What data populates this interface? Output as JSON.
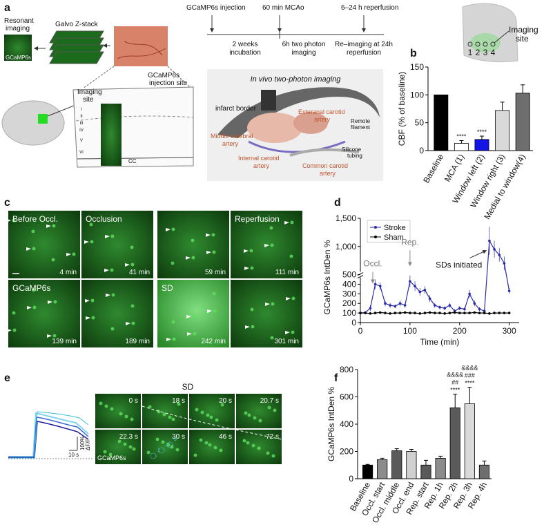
{
  "panel_labels": [
    "a",
    "b",
    "c",
    "d",
    "e",
    "f"
  ],
  "panel_a": {
    "resonant_imaging": [
      "Resonant",
      "imaging"
    ],
    "image_label": "GCaMP6s",
    "galvo": "Galvo Z-stack",
    "injection_site": [
      "GCaMP6s",
      "injection site"
    ],
    "imaging_site": [
      "Imaging",
      "site"
    ],
    "layers": [
      "I",
      "II",
      "III",
      "IV",
      "V",
      "VI"
    ],
    "cc": "CC",
    "timeline": {
      "events": [
        "GCaMP6s injection",
        "60 min MCAo",
        "6–24 h reperfusion"
      ],
      "periods": [
        [
          "2 weeks",
          "incubation"
        ],
        [
          "6h two photon",
          "imaging"
        ],
        [
          "Re–imaging at 24h",
          "reperfusion"
        ]
      ]
    },
    "illustration": {
      "title": "In vivo two-photon imaging",
      "infarct": "infarct border",
      "external": [
        "Exteranal carotid",
        "artery"
      ],
      "filament": [
        "Remote",
        "filament"
      ],
      "middle": [
        "Middle cerebral",
        "artery"
      ],
      "internal": [
        "Internal carotid",
        "artery"
      ],
      "tubing": [
        "Silicone",
        "tubing"
      ],
      "common": [
        "Common carotid",
        "artery"
      ]
    }
  },
  "panel_b_inset": {
    "positions": [
      "1",
      "2",
      "3",
      "4"
    ],
    "label": [
      "Imaging",
      "site"
    ]
  },
  "panel_c": {
    "images": [
      {
        "label": "Before Occl.",
        "time": "4 min"
      },
      {
        "label": "Occlusion",
        "time": "41 min"
      },
      {
        "time": "59 min"
      },
      {
        "label": "Reperfusion",
        "time": "111 min"
      },
      {
        "label": "GCaMP6s",
        "time": "139 min"
      },
      {
        "time": "189 min"
      },
      {
        "label": "SD",
        "time": "242 min"
      },
      {
        "time": "301 min"
      }
    ]
  },
  "panel_e": {
    "title": "SD",
    "frames": [
      {
        "time": "0 s"
      },
      {
        "time": "18 s"
      },
      {
        "time": "20 s"
      },
      {
        "time": "20.7 s"
      },
      {
        "time": "22.3 s"
      },
      {
        "time": "30 s"
      },
      {
        "time": "46 s"
      },
      {
        "time": "72 s"
      }
    ],
    "frame_label": "GCaMP6s",
    "roi_numbers": [
      "1",
      "2",
      "3"
    ],
    "scale": [
      "100%",
      "ΔF/F"
    ],
    "time_scale": "10 s"
  },
  "chart_data": [
    {
      "type": "bar",
      "ylabel": "CBF (% of baseline)",
      "categories": [
        "Baseline",
        "MCA (1)",
        "Window left (2)",
        "Window right (3)",
        "Medial to window(4)"
      ],
      "values": [
        100,
        13,
        20,
        72,
        103
      ],
      "errors": [
        0,
        5,
        6,
        15,
        15
      ],
      "colors": [
        "#000000",
        "#ffffff",
        "#1414e6",
        "#d9d9d9",
        "#6e6e6e"
      ],
      "significance": [
        null,
        [
          "****"
        ],
        [
          "****"
        ],
        null,
        null
      ],
      "ylim": [
        0,
        150
      ],
      "yticks": [
        0,
        50,
        100,
        150
      ]
    },
    {
      "type": "line",
      "ylabel": "GCaMP6s IntDen %",
      "xlabel": "Time (min)",
      "x": [
        0,
        10,
        20,
        30,
        40,
        50,
        60,
        70,
        80,
        90,
        100,
        110,
        120,
        130,
        140,
        150,
        160,
        170,
        180,
        190,
        200,
        210,
        220,
        230,
        240,
        250,
        260,
        270,
        280,
        290,
        300
      ],
      "series": [
        {
          "name": "Stroke",
          "color": "#2a2aa8",
          "values": [
            100,
            105,
            150,
            400,
            380,
            200,
            180,
            170,
            200,
            180,
            430,
            380,
            320,
            340,
            250,
            180,
            160,
            150,
            180,
            120,
            150,
            140,
            300,
            200,
            140,
            120,
            1100,
            950,
            850,
            700,
            330
          ],
          "errors": [
            5,
            10,
            30,
            50,
            40,
            30,
            25,
            20,
            30,
            25,
            60,
            50,
            40,
            40,
            35,
            25,
            20,
            20,
            25,
            20,
            20,
            20,
            40,
            30,
            20,
            20,
            250,
            150,
            120,
            120,
            30
          ]
        },
        {
          "name": "Sham",
          "color": "#000000",
          "values": [
            100,
            100,
            95,
            100,
            105,
            100,
            95,
            100,
            100,
            105,
            100,
            100,
            95,
            100,
            105,
            100,
            100,
            95,
            100,
            105,
            100,
            100,
            100,
            105,
            100,
            100,
            95,
            100,
            100,
            100,
            100
          ]
        }
      ],
      "xlim": [
        0,
        320
      ],
      "ylim": [
        0,
        1500
      ],
      "axis_break": 500,
      "xticks": [
        0,
        100,
        200,
        300
      ],
      "yticks": [
        0,
        100,
        200,
        300,
        400,
        500,
        {
          "value": 1000,
          "label": "1,000"
        },
        {
          "value": 1500,
          "label": "1,500"
        }
      ],
      "legend": "upper left",
      "annotations": [
        {
          "x": 25,
          "text": "Occl."
        },
        {
          "x": 100,
          "text": "Rep."
        },
        {
          "x": 262,
          "text": "SDs initiated"
        }
      ]
    },
    {
      "type": "bar",
      "ylabel": "GCaMP6s IntDen %",
      "categories": [
        "Baseline",
        "Occl. start",
        "Occl. middle",
        "Occl. end",
        "Rep. start",
        "Rep. 1h",
        "Rep. 2h",
        "Rep. 3h",
        "Rep. 4h"
      ],
      "values": [
        100,
        140,
        205,
        200,
        100,
        150,
        520,
        550,
        100
      ],
      "errors": [
        5,
        10,
        15,
        15,
        35,
        15,
        100,
        120,
        30
      ],
      "colors": [
        "#000000",
        "#8c8c8c",
        "#5a5a5a",
        "#d0d0d0",
        "#5a5a5a",
        "#8c8c8c",
        "#5a5a5a",
        "#d9d9d9",
        "#6e6e6e"
      ],
      "significance": [
        null,
        null,
        null,
        null,
        null,
        null,
        [
          "&&&&",
          "##",
          "****"
        ],
        [
          "&&&&",
          "###",
          "****"
        ],
        null
      ],
      "ylim": [
        0,
        800
      ],
      "yticks": [
        0,
        200,
        400,
        600,
        800
      ]
    }
  ]
}
